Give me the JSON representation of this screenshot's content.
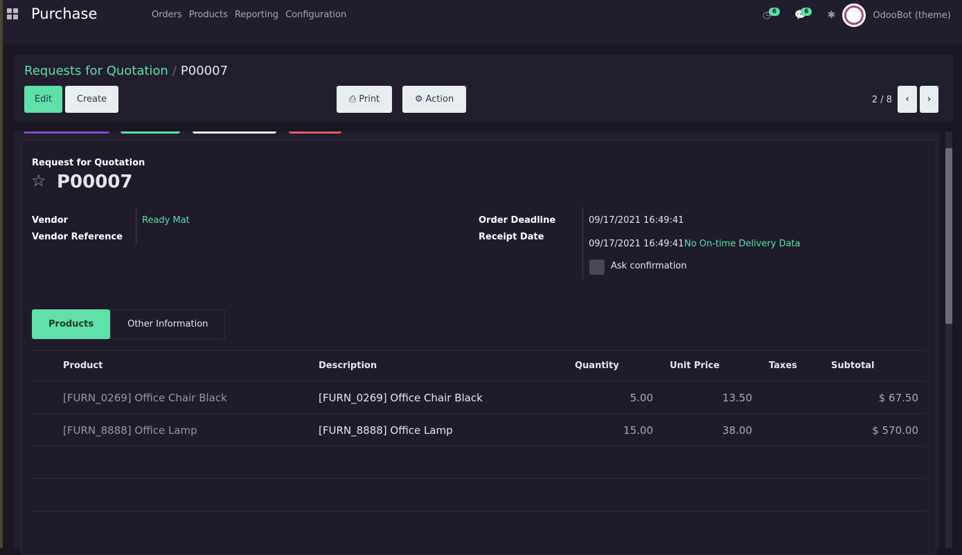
{
  "app": {
    "title": "Purchase",
    "menu": [
      "Orders",
      "Products",
      "Reporting",
      "Configuration"
    ],
    "activity_count": "6",
    "message_count": "6",
    "user": "OdooBot (theme)"
  },
  "control": {
    "breadcrumb_parent": "Requests for Quotation",
    "breadcrumb_current": "P00007",
    "edit": "Edit",
    "create": "Create",
    "print": "Print",
    "action": "Action",
    "pager": "2 / 8"
  },
  "form": {
    "doc_type": "Request for Quotation",
    "name": "P00007",
    "vendor_label": "Vendor",
    "vendor": "Ready Mat",
    "vendor_ref_label": "Vendor Reference",
    "deadline_label": "Order Deadline",
    "deadline": "09/17/2021 16:49:41",
    "receipt_label": "Receipt Date",
    "receipt": "09/17/2021 16:49:41",
    "delivery_note": "No On-time Delivery Data",
    "ask_confirmation": "Ask confirmation"
  },
  "tabs": [
    "Products",
    "Other Information"
  ],
  "table": {
    "headers": [
      "Product",
      "Description",
      "Quantity",
      "Unit Price",
      "Taxes",
      "Subtotal"
    ],
    "rows": [
      {
        "product": "[FURN_0269] Office Chair Black",
        "description": "[FURN_0269] Office Chair Black",
        "quantity": "5.00",
        "unit_price": "13.50",
        "taxes": "",
        "subtotal": "$ 67.50"
      },
      {
        "product": "[FURN_8888] Office Lamp",
        "description": "[FURN_8888] Office Lamp",
        "quantity": "15.00",
        "unit_price": "38.00",
        "taxes": "",
        "subtotal": "$ 570.00"
      }
    ]
  },
  "colors": {
    "accent": "#5ee0a8",
    "background": "#1a1723"
  }
}
